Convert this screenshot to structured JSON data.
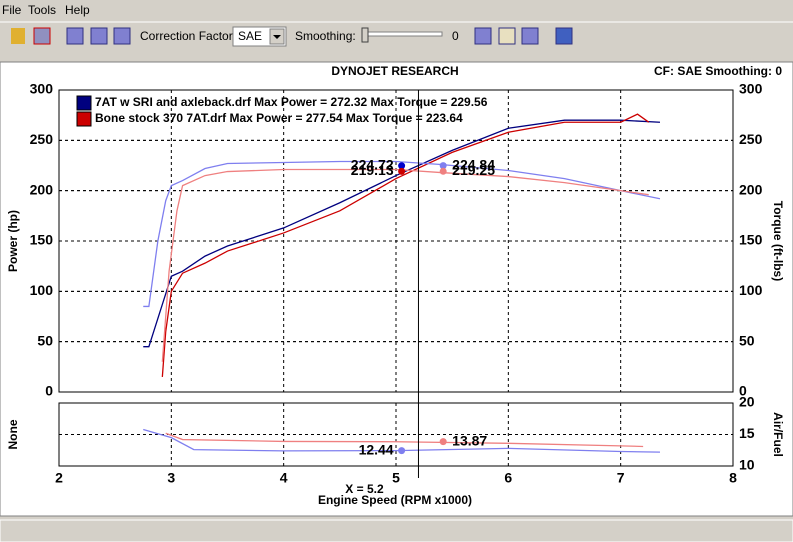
{
  "menu": [
    "File",
    "Tools",
    "Help"
  ],
  "toolbar": {
    "correction_label": "Correction Factor:",
    "correction_value": "SAE",
    "smoothing_label": "Smoothing:",
    "smoothing_value": "0"
  },
  "header": {
    "title": "DYNOJET RESEARCH",
    "status": "CF: SAE  Smoothing: 0"
  },
  "chart_data": [
    {
      "type": "line",
      "ylabel": "Power (hp)",
      "y2label": "Torque (ft-lbs)",
      "xlim": [
        2,
        8
      ],
      "ylim": [
        0,
        300
      ],
      "yticks": [
        0,
        50,
        100,
        150,
        200,
        250,
        300
      ],
      "y2lim": [
        0,
        300
      ],
      "y2ticks": [
        0,
        50,
        100,
        150,
        200,
        250,
        300
      ],
      "grid": true,
      "series": [
        {
          "name": "7AT w SRI and axleback.drf Max Power = 272.32 Max Torque = 229.56",
          "color": "#00007f",
          "axis": "y",
          "x": [
            2.75,
            2.8,
            2.9,
            3.0,
            3.1,
            3.3,
            3.5,
            4.0,
            4.5,
            5.0,
            5.5,
            6.0,
            6.5,
            7.0,
            7.35
          ],
          "values": [
            45,
            45,
            80,
            115,
            120,
            135,
            145,
            163,
            188,
            215,
            240,
            262,
            270,
            270,
            268
          ]
        },
        {
          "name": "Bone stock 370 7AT.drf Max Power = 277.54 Max Torque = 223.64",
          "color": "#cc0000",
          "axis": "y",
          "x": [
            2.92,
            2.95,
            3.0,
            3.1,
            3.3,
            3.5,
            4.0,
            4.5,
            5.0,
            5.5,
            6.0,
            6.5,
            7.0,
            7.15,
            7.25
          ],
          "values": [
            15,
            60,
            100,
            118,
            128,
            140,
            158,
            180,
            212,
            238,
            258,
            268,
            268,
            276,
            268
          ]
        },
        {
          "color": "#7f7fef",
          "axis": "y2",
          "x": [
            2.75,
            2.8,
            2.88,
            2.95,
            3.0,
            3.1,
            3.3,
            3.5,
            4.0,
            4.5,
            5.0,
            5.4,
            6.0,
            6.5,
            7.0,
            7.35
          ],
          "values": [
            85,
            85,
            150,
            190,
            205,
            210,
            222,
            227,
            228,
            229,
            229,
            226,
            220,
            212,
            200,
            192
          ]
        },
        {
          "color": "#ef8080",
          "axis": "y2",
          "x": [
            2.92,
            2.98,
            3.05,
            3.1,
            3.3,
            3.5,
            4.0,
            4.5,
            5.0,
            5.4,
            6.0,
            6.5,
            7.0,
            7.25
          ],
          "values": [
            30,
            120,
            180,
            205,
            215,
            219,
            221,
            221,
            221,
            218,
            214,
            208,
            200,
            196
          ]
        }
      ],
      "markers": [
        {
          "x": 5.05,
          "value": 224.72,
          "color": "#0000cc",
          "axis": "y"
        },
        {
          "x": 5.05,
          "value": 219.13,
          "color": "#cc0000",
          "axis": "y"
        },
        {
          "x": 5.42,
          "value": 224.84,
          "color": "#7f7fef",
          "axis": "y2"
        },
        {
          "x": 5.42,
          "value": 219.25,
          "color": "#ef8080",
          "axis": "y2"
        }
      ]
    },
    {
      "type": "line",
      "ylabel": "None",
      "y2label": "Air/Fuel",
      "xlabel": "Engine Speed (RPM x1000)",
      "xlim": [
        2,
        8
      ],
      "xticks": [
        2,
        3,
        4,
        5,
        6,
        7,
        8
      ],
      "y2lim": [
        10,
        20
      ],
      "y2ticks": [
        10,
        15,
        20
      ],
      "grid": true,
      "cursor": {
        "value": 5.2,
        "label": "X = 5.2"
      },
      "series": [
        {
          "color": "#7f7fef",
          "axis": "y2",
          "x": [
            2.75,
            3.0,
            3.2,
            4.0,
            5.0,
            6.0,
            7.0,
            7.35
          ],
          "values": [
            15.8,
            14.5,
            12.6,
            12.4,
            12.44,
            12.8,
            12.3,
            12.2
          ]
        },
        {
          "color": "#ef8080",
          "axis": "y2",
          "x": [
            2.95,
            3.1,
            4.0,
            5.0,
            6.0,
            7.0,
            7.2
          ],
          "values": [
            15.2,
            14.2,
            13.9,
            13.85,
            13.6,
            13.2,
            13.1
          ]
        }
      ],
      "markers": [
        {
          "x": 5.05,
          "value": 12.44,
          "color": "#7f7fef",
          "axis": "y2"
        },
        {
          "x": 5.42,
          "value": 13.87,
          "color": "#ef8080",
          "axis": "y2"
        }
      ]
    }
  ]
}
